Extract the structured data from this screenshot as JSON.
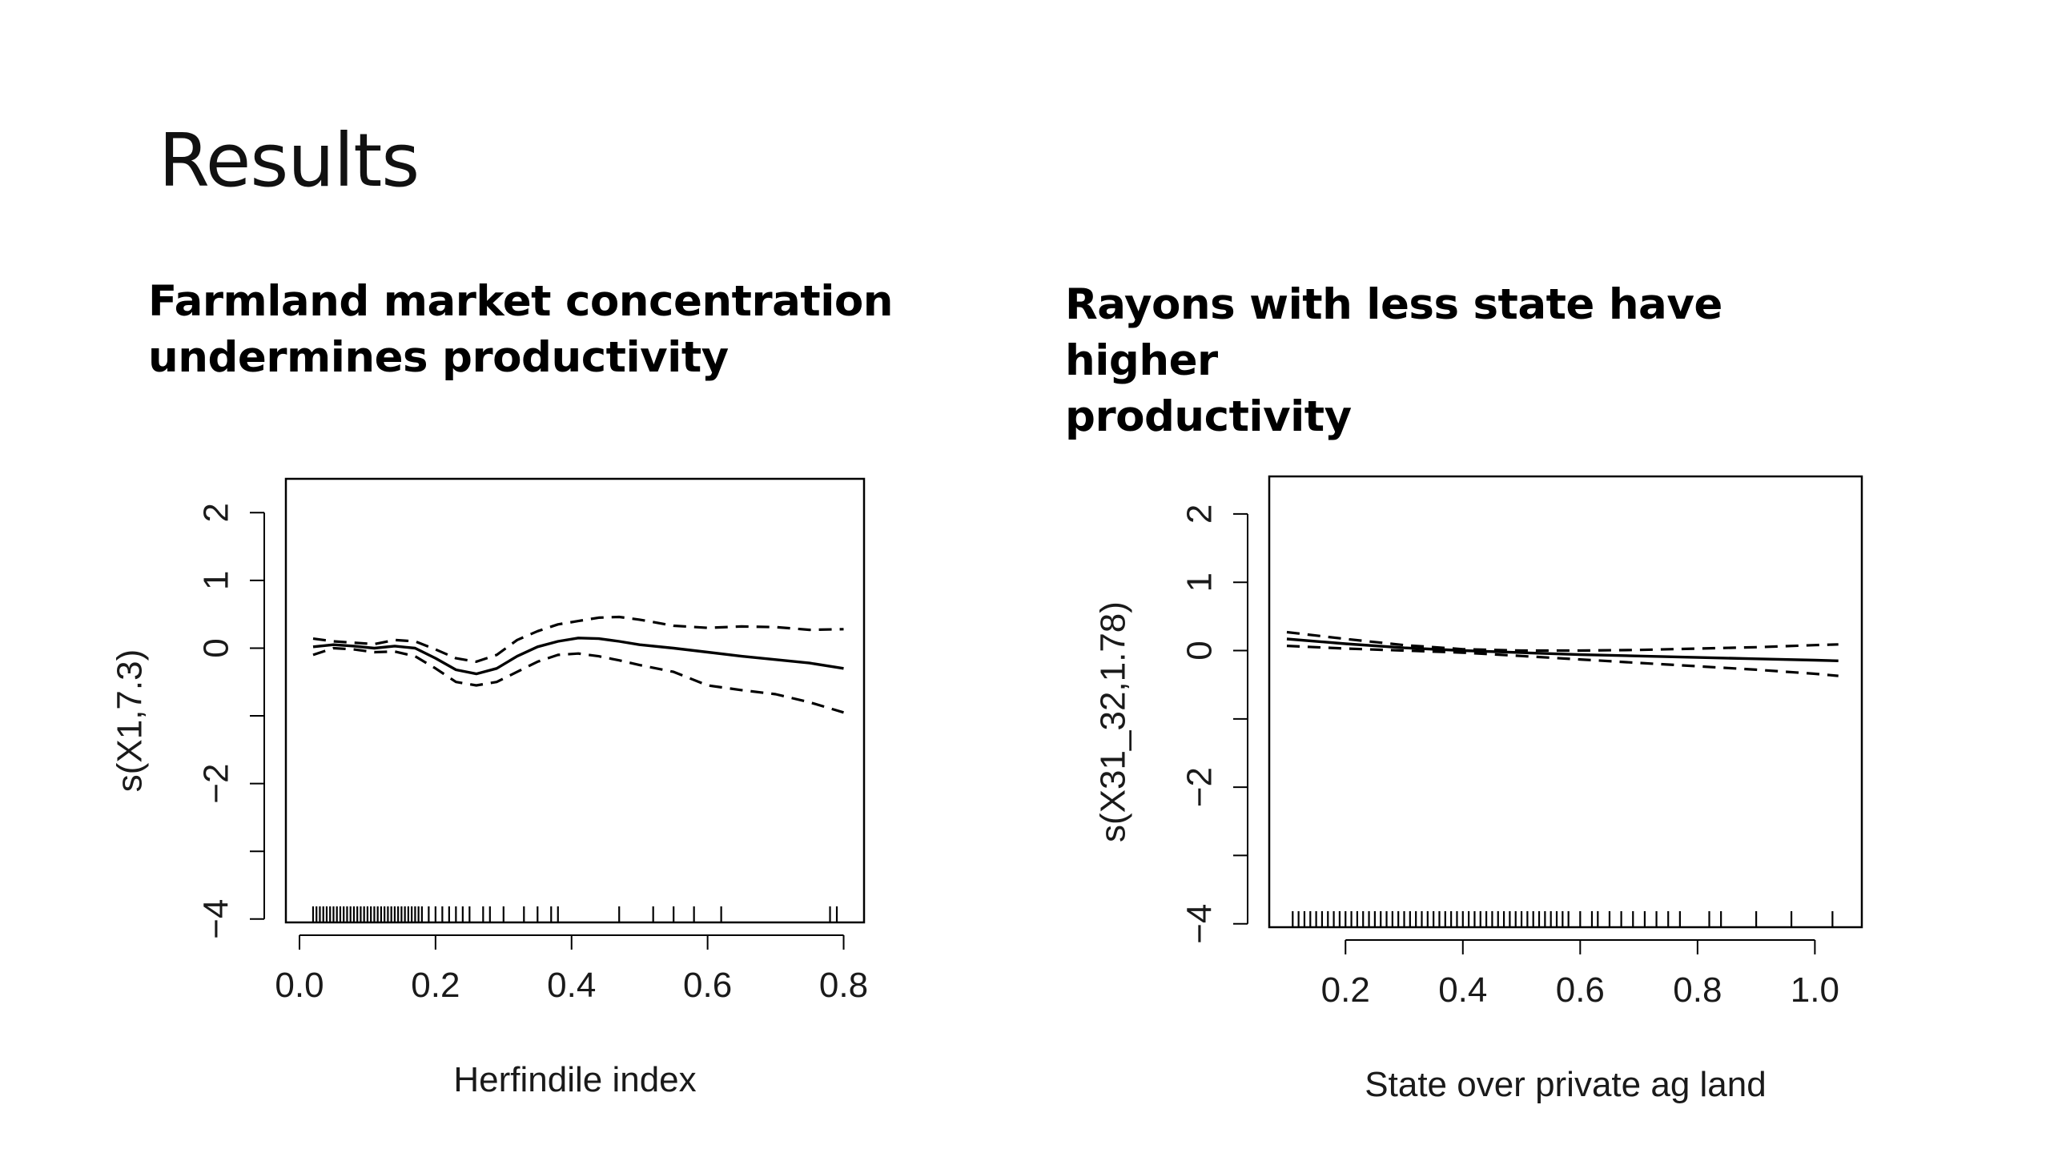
{
  "slide": {
    "title": "Results"
  },
  "panels": [
    {
      "subtitle_line1": "Farmland market concentration",
      "subtitle_line2": "undermines productivity"
    },
    {
      "subtitle_line1": "Rayons with less state have higher",
      "subtitle_line2": "productivity"
    }
  ],
  "chart_data": [
    {
      "type": "line",
      "title": "Farmland market concentration undermines productivity",
      "xlabel": "Herfindile index",
      "ylabel": "s(X1,7.3)",
      "xlim": [
        -0.02,
        0.83
      ],
      "ylim": [
        -4.05,
        2.5
      ],
      "x_ticks": [
        0.0,
        0.2,
        0.4,
        0.6,
        0.8
      ],
      "x_tick_labels": [
        "0.0",
        "0.2",
        "0.4",
        "0.6",
        "0.8"
      ],
      "y_ticks": [
        -4,
        -3,
        -2,
        -1,
        0,
        1,
        2
      ],
      "y_tick_labels": [
        "-4",
        "",
        "-2",
        "",
        "0",
        "1",
        "2"
      ],
      "series": [
        {
          "style": "solid",
          "x": [
            0.02,
            0.05,
            0.08,
            0.11,
            0.14,
            0.17,
            0.2,
            0.23,
            0.26,
            0.29,
            0.32,
            0.35,
            0.38,
            0.41,
            0.44,
            0.47,
            0.5,
            0.55,
            0.6,
            0.65,
            0.7,
            0.75,
            0.8
          ],
          "y": [
            0.02,
            0.05,
            0.03,
            0.0,
            0.03,
            0.0,
            -0.15,
            -0.32,
            -0.38,
            -0.3,
            -0.12,
            0.02,
            0.1,
            0.15,
            0.14,
            0.1,
            0.05,
            0.0,
            -0.06,
            -0.12,
            -0.17,
            -0.22,
            -0.3
          ]
        },
        {
          "style": "dashed",
          "x": [
            0.02,
            0.05,
            0.08,
            0.11,
            0.14,
            0.17,
            0.2,
            0.23,
            0.26,
            0.29,
            0.32,
            0.35,
            0.38,
            0.41,
            0.44,
            0.47,
            0.5,
            0.55,
            0.6,
            0.65,
            0.7,
            0.75,
            0.8
          ],
          "y": [
            0.14,
            0.1,
            0.08,
            0.06,
            0.12,
            0.1,
            -0.02,
            -0.15,
            -0.2,
            -0.1,
            0.12,
            0.25,
            0.35,
            0.4,
            0.45,
            0.46,
            0.42,
            0.33,
            0.3,
            0.32,
            0.31,
            0.27,
            0.28
          ]
        },
        {
          "style": "dashed",
          "x": [
            0.02,
            0.05,
            0.08,
            0.11,
            0.14,
            0.17,
            0.2,
            0.23,
            0.26,
            0.29,
            0.32,
            0.35,
            0.38,
            0.41,
            0.44,
            0.47,
            0.5,
            0.55,
            0.6,
            0.65,
            0.7,
            0.75,
            0.8
          ],
          "y": [
            -0.1,
            0.0,
            -0.02,
            -0.06,
            -0.05,
            -0.12,
            -0.3,
            -0.5,
            -0.55,
            -0.5,
            -0.35,
            -0.2,
            -0.1,
            -0.08,
            -0.12,
            -0.18,
            -0.25,
            -0.35,
            -0.55,
            -0.62,
            -0.68,
            -0.8,
            -0.95
          ]
        }
      ],
      "rug": [
        0.02,
        0.025,
        0.03,
        0.035,
        0.04,
        0.045,
        0.05,
        0.055,
        0.06,
        0.065,
        0.07,
        0.075,
        0.08,
        0.085,
        0.09,
        0.095,
        0.1,
        0.105,
        0.11,
        0.115,
        0.12,
        0.125,
        0.13,
        0.135,
        0.14,
        0.145,
        0.15,
        0.155,
        0.16,
        0.165,
        0.17,
        0.175,
        0.18,
        0.19,
        0.2,
        0.21,
        0.22,
        0.23,
        0.24,
        0.25,
        0.27,
        0.28,
        0.3,
        0.33,
        0.35,
        0.37,
        0.38,
        0.47,
        0.52,
        0.55,
        0.58,
        0.62,
        0.78,
        0.79
      ]
    },
    {
      "type": "line",
      "title": "Rayons with less state have higher productivity",
      "xlabel": "State over private ag land",
      "ylabel": "s(X31_32,1.78)",
      "xlim": [
        0.07,
        1.08
      ],
      "ylim": [
        -4.05,
        2.55
      ],
      "x_ticks": [
        0.2,
        0.4,
        0.6,
        0.8,
        1.0
      ],
      "x_tick_labels": [
        "0.2",
        "0.4",
        "0.6",
        "0.8",
        "1.0"
      ],
      "y_ticks": [
        -4,
        -3,
        -2,
        -1,
        0,
        1,
        2
      ],
      "y_tick_labels": [
        "-4",
        "",
        "-2",
        "",
        "0",
        "1",
        "2"
      ],
      "series": [
        {
          "style": "solid",
          "x": [
            0.1,
            0.2,
            0.3,
            0.4,
            0.5,
            0.6,
            0.7,
            0.8,
            0.9,
            1.0,
            1.04
          ],
          "y": [
            0.17,
            0.1,
            0.04,
            0.0,
            -0.03,
            -0.06,
            -0.08,
            -0.1,
            -0.12,
            -0.14,
            -0.15
          ]
        },
        {
          "style": "dashed",
          "x": [
            0.1,
            0.2,
            0.3,
            0.4,
            0.5,
            0.6,
            0.7,
            0.8,
            0.9,
            1.0,
            1.04
          ],
          "y": [
            0.27,
            0.17,
            0.08,
            0.02,
            0.0,
            0.0,
            0.01,
            0.03,
            0.05,
            0.08,
            0.09
          ]
        },
        {
          "style": "dashed",
          "x": [
            0.1,
            0.2,
            0.3,
            0.4,
            0.5,
            0.6,
            0.7,
            0.8,
            0.9,
            1.0,
            1.04
          ],
          "y": [
            0.07,
            0.03,
            0.0,
            -0.03,
            -0.08,
            -0.13,
            -0.18,
            -0.23,
            -0.28,
            -0.34,
            -0.37
          ]
        }
      ],
      "rug": [
        0.11,
        0.12,
        0.13,
        0.14,
        0.15,
        0.16,
        0.17,
        0.18,
        0.19,
        0.2,
        0.21,
        0.22,
        0.23,
        0.24,
        0.25,
        0.26,
        0.27,
        0.28,
        0.29,
        0.3,
        0.31,
        0.32,
        0.33,
        0.34,
        0.35,
        0.36,
        0.37,
        0.38,
        0.39,
        0.4,
        0.41,
        0.42,
        0.43,
        0.44,
        0.45,
        0.46,
        0.47,
        0.48,
        0.49,
        0.5,
        0.51,
        0.52,
        0.53,
        0.54,
        0.55,
        0.56,
        0.57,
        0.58,
        0.6,
        0.62,
        0.63,
        0.65,
        0.67,
        0.69,
        0.71,
        0.73,
        0.75,
        0.77,
        0.82,
        0.84,
        0.9,
        0.96,
        1.03
      ]
    }
  ]
}
